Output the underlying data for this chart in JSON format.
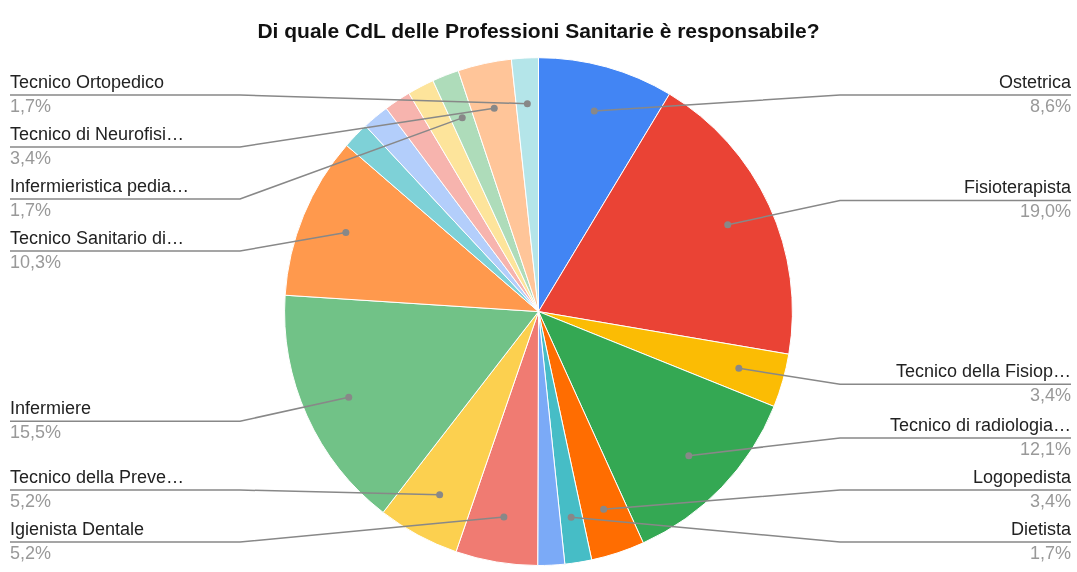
{
  "chart_data": {
    "type": "pie",
    "title": "Di quale CdL delle Professioni Sanitarie è responsabile?",
    "categories": [
      "Ostetrica",
      "Fisioterapista",
      "Tecnico della Fisiop…",
      "Tecnico di radiologia…",
      "Logopedista",
      "Dietista",
      null,
      "Igienista Dentale",
      "Tecnico della Preve…",
      "Infermiere",
      "Tecnico Sanitario di…",
      null,
      null,
      null,
      null,
      "Infermieristica pedia…",
      "Tecnico di Neurofisi…",
      "Tecnico Ortopedico"
    ],
    "values": [
      8.6,
      19.0,
      3.4,
      12.1,
      3.4,
      1.7,
      1.7,
      5.2,
      5.2,
      15.5,
      10.3,
      1.7,
      1.7,
      1.7,
      1.7,
      1.7,
      3.4,
      1.7
    ],
    "value_labels": [
      "8,6%",
      "19,0%",
      "3,4%",
      "12,1%",
      "3,4%",
      "1,7%",
      null,
      "5,2%",
      "5,2%",
      "15,5%",
      "10,3%",
      null,
      null,
      null,
      null,
      "1,7%",
      "3,4%",
      "1,7%"
    ],
    "colors": [
      "#4285f4",
      "#ea4335",
      "#fbbc04",
      "#34a853",
      "#ff6d01",
      "#46bdc6",
      "#7baaf7",
      "#f07b72",
      "#fcd04f",
      "#71c287",
      "#ff994d",
      "#7ed1d7",
      "#b3cefb",
      "#f7b4ae",
      "#fde49b",
      "#aedcba",
      "#ffc599",
      "#b4e5e9"
    ],
    "legend": false
  }
}
